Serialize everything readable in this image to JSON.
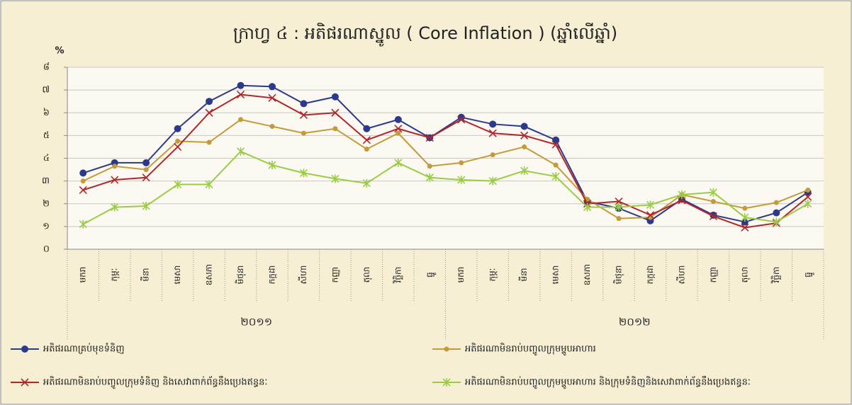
{
  "chart_data": {
    "type": "line",
    "title": "ក្រាហ្វ ៤ : អតិផរណាស្នូល ( Core Inflation ) (ឆ្នាំលើឆ្នាំ)",
    "y_label": "%",
    "categories": [
      "មករា",
      "កុម្ភៈ",
      "មីនា",
      "មេសា",
      "ឧសភា",
      "មិថុនា",
      "កក្កដា",
      "សីហា",
      "កញ្ញា",
      "តុលា",
      "វិច្ឆិកា",
      "ធ្នូ",
      "មករា",
      "កុម្ភៈ",
      "មីនា",
      "មេសា",
      "ឧសភា",
      "មិថុនា",
      "កក្កដា",
      "សីហា",
      "កញ្ញា",
      "តុលា",
      "វិច្ឆិកា",
      "ធ្នូ"
    ],
    "groups": [
      "២០១១",
      "២០១២"
    ],
    "ylim": [
      0,
      8
    ],
    "yticks": [
      {
        "value": 0,
        "label": "០"
      },
      {
        "value": 1,
        "label": "១"
      },
      {
        "value": 2,
        "label": "២"
      },
      {
        "value": 3,
        "label": "៣"
      },
      {
        "value": 4,
        "label": "៤"
      },
      {
        "value": 5,
        "label": "៥"
      },
      {
        "value": 6,
        "label": "៦"
      },
      {
        "value": 7,
        "label": "៧"
      },
      {
        "value": 8,
        "label": "៨"
      }
    ],
    "grid": true,
    "series": [
      {
        "name": "អតិផរណាគ្រប់មុខទំនិញ",
        "color": "#2b3a8c",
        "marker": "circle",
        "values": [
          3.35,
          3.8,
          3.8,
          5.3,
          6.5,
          7.2,
          7.15,
          6.4,
          6.7,
          5.3,
          5.7,
          4.9,
          5.8,
          5.5,
          5.4,
          4.8,
          2.1,
          1.8,
          1.25,
          2.2,
          1.5,
          1.2,
          1.6,
          2.5
        ]
      },
      {
        "name": "អតិផរណាមិនរាប់បញ្ចូលក្រុមម្ហូបអាហារ",
        "color": "#c49a3a",
        "marker": "dot",
        "values": [
          3.0,
          3.65,
          3.5,
          4.75,
          4.7,
          5.7,
          5.4,
          5.1,
          5.3,
          4.4,
          5.1,
          3.65,
          3.8,
          4.15,
          4.5,
          3.7,
          2.2,
          1.35,
          1.4,
          2.4,
          2.1,
          1.8,
          2.05,
          2.6
        ]
      },
      {
        "name": "អតិផរណាមិនរាប់បញ្ចូលក្រុមទំនិញ និងសេវាពាក់ព័ន្ធនឹងប្រេងឥន្ធនៈ",
        "color": "#b0262a",
        "marker": "x",
        "values": [
          2.6,
          3.05,
          3.15,
          4.5,
          6.0,
          6.8,
          6.65,
          5.9,
          6.0,
          4.8,
          5.3,
          4.9,
          5.7,
          5.1,
          5.0,
          4.6,
          2.0,
          2.1,
          1.5,
          2.15,
          1.45,
          0.95,
          1.15,
          2.3
        ]
      },
      {
        "name": "អតិផរណាមិនរាប់បញ្ចូលក្រុមម្ហូបអាហារ និងក្រុមទំនិញនិងសេវាពាក់ព័ន្ធនឹងប្រេងឥន្ធនៈ",
        "color": "#9acd45",
        "marker": "star",
        "values": [
          1.1,
          1.85,
          1.9,
          2.85,
          2.85,
          4.3,
          3.7,
          3.35,
          3.1,
          2.9,
          3.8,
          3.15,
          3.05,
          3.0,
          3.45,
          3.2,
          1.85,
          1.85,
          1.95,
          2.4,
          2.5,
          1.4,
          1.2,
          2.0
        ]
      }
    ]
  }
}
